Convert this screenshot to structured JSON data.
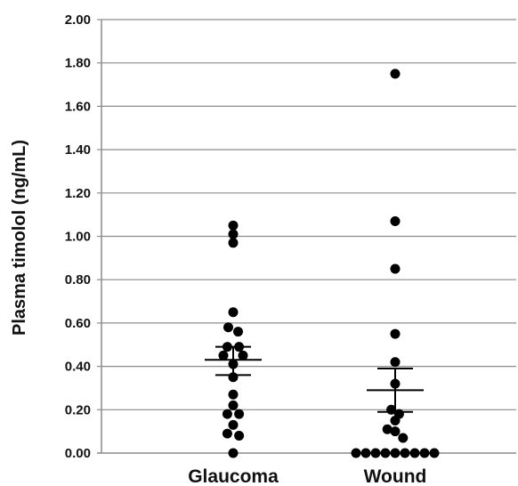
{
  "chart_data": {
    "type": "scatter",
    "subtype": "dot-plot with mean and SEM bars",
    "title": "",
    "xlabel": "",
    "ylabel": "Plasma timolol (ng/mL)",
    "ylim": [
      0,
      2.0
    ],
    "yticks": [
      "0.00",
      "0.20",
      "0.40",
      "0.60",
      "0.80",
      "1.00",
      "1.20",
      "1.40",
      "1.60",
      "1.80",
      "2.00"
    ],
    "grid": true,
    "legend": "none",
    "categories": [
      "Glaucoma",
      "Wound"
    ],
    "series": [
      {
        "category": "Glaucoma",
        "mean": 0.43,
        "sem_upper": 0.49,
        "sem_lower": 0.36,
        "points": [
          {
            "y": 1.05,
            "offset": 0
          },
          {
            "y": 1.01,
            "offset": 0
          },
          {
            "y": 0.97,
            "offset": 0
          },
          {
            "y": 0.65,
            "offset": 0
          },
          {
            "y": 0.58,
            "offset": -0.5
          },
          {
            "y": 0.56,
            "offset": 0.5
          },
          {
            "y": 0.49,
            "offset": -0.6
          },
          {
            "y": 0.49,
            "offset": 0.6
          },
          {
            "y": 0.45,
            "offset": -1
          },
          {
            "y": 0.45,
            "offset": 1
          },
          {
            "y": 0.41,
            "offset": 0
          },
          {
            "y": 0.35,
            "offset": 0
          },
          {
            "y": 0.27,
            "offset": 0
          },
          {
            "y": 0.22,
            "offset": 0
          },
          {
            "y": 0.18,
            "offset": -0.6
          },
          {
            "y": 0.18,
            "offset": 0.6
          },
          {
            "y": 0.13,
            "offset": 0
          },
          {
            "y": 0.09,
            "offset": -0.6
          },
          {
            "y": 0.08,
            "offset": 0.6
          },
          {
            "y": 0.0,
            "offset": 0
          }
        ]
      },
      {
        "category": "Wound",
        "mean": 0.29,
        "sem_upper": 0.39,
        "sem_lower": 0.19,
        "points": [
          {
            "y": 1.75,
            "offset": 0
          },
          {
            "y": 1.07,
            "offset": 0
          },
          {
            "y": 0.85,
            "offset": 0
          },
          {
            "y": 0.55,
            "offset": 0
          },
          {
            "y": 0.42,
            "offset": 0
          },
          {
            "y": 0.32,
            "offset": 0
          },
          {
            "y": 0.2,
            "offset": -0.4
          },
          {
            "y": 0.18,
            "offset": 0.4
          },
          {
            "y": 0.15,
            "offset": 0
          },
          {
            "y": 0.11,
            "offset": -0.8
          },
          {
            "y": 0.1,
            "offset": 0
          },
          {
            "y": 0.07,
            "offset": 0.8
          },
          {
            "y": 0.0,
            "offset": -4
          },
          {
            "y": 0.0,
            "offset": -3
          },
          {
            "y": 0.0,
            "offset": -2
          },
          {
            "y": 0.0,
            "offset": -1
          },
          {
            "y": 0.0,
            "offset": 0
          },
          {
            "y": 0.0,
            "offset": 1
          },
          {
            "y": 0.0,
            "offset": 2
          },
          {
            "y": 0.0,
            "offset": 3
          },
          {
            "y": 0.0,
            "offset": 4
          }
        ]
      }
    ],
    "colors": {
      "points": "#000000",
      "gridlines": "#8c8c8c",
      "axis": "#8c8c8c",
      "mean_bar": "#000000"
    }
  }
}
